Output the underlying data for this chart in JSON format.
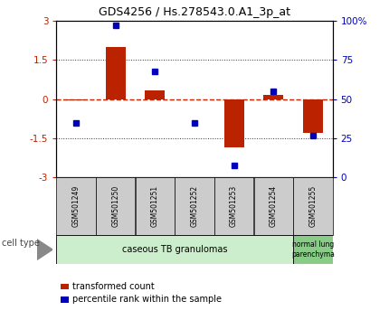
{
  "title": "GDS4256 / Hs.278543.0.A1_3p_at",
  "samples": [
    "GSM501249",
    "GSM501250",
    "GSM501251",
    "GSM501252",
    "GSM501253",
    "GSM501254",
    "GSM501255"
  ],
  "transformed_counts": [
    -0.05,
    2.0,
    0.35,
    -0.02,
    -1.85,
    0.15,
    -1.3
  ],
  "percentile_ranks": [
    35,
    97,
    68,
    35,
    8,
    55,
    27
  ],
  "ylim_left": [
    -3,
    3
  ],
  "ylim_right": [
    0,
    100
  ],
  "yticks_left": [
    -3,
    -1.5,
    0,
    1.5,
    3
  ],
  "yticks_right": [
    0,
    25,
    50,
    75,
    100
  ],
  "ytick_labels_left": [
    "-3",
    "-1.5",
    "0",
    "1.5",
    "3"
  ],
  "ytick_labels_right": [
    "0",
    "25",
    "50",
    "75",
    "100%"
  ],
  "bar_color": "#bb2200",
  "dot_color": "#0000bb",
  "cell_type_colors": [
    "#cceecc",
    "#88cc88"
  ],
  "cell_type_labels": [
    "caseous TB granulomas",
    "normal lung\nparenchyma"
  ],
  "cell_type_ranges": [
    [
      0,
      5
    ],
    [
      6,
      6
    ]
  ],
  "cell_type_header": "cell type",
  "legend_bar_label": "transformed count",
  "legend_dot_label": "percentile rank within the sample",
  "label_bg_color": "#cccccc",
  "dotted_color": "#333333",
  "zero_line_color": "#cc2200"
}
